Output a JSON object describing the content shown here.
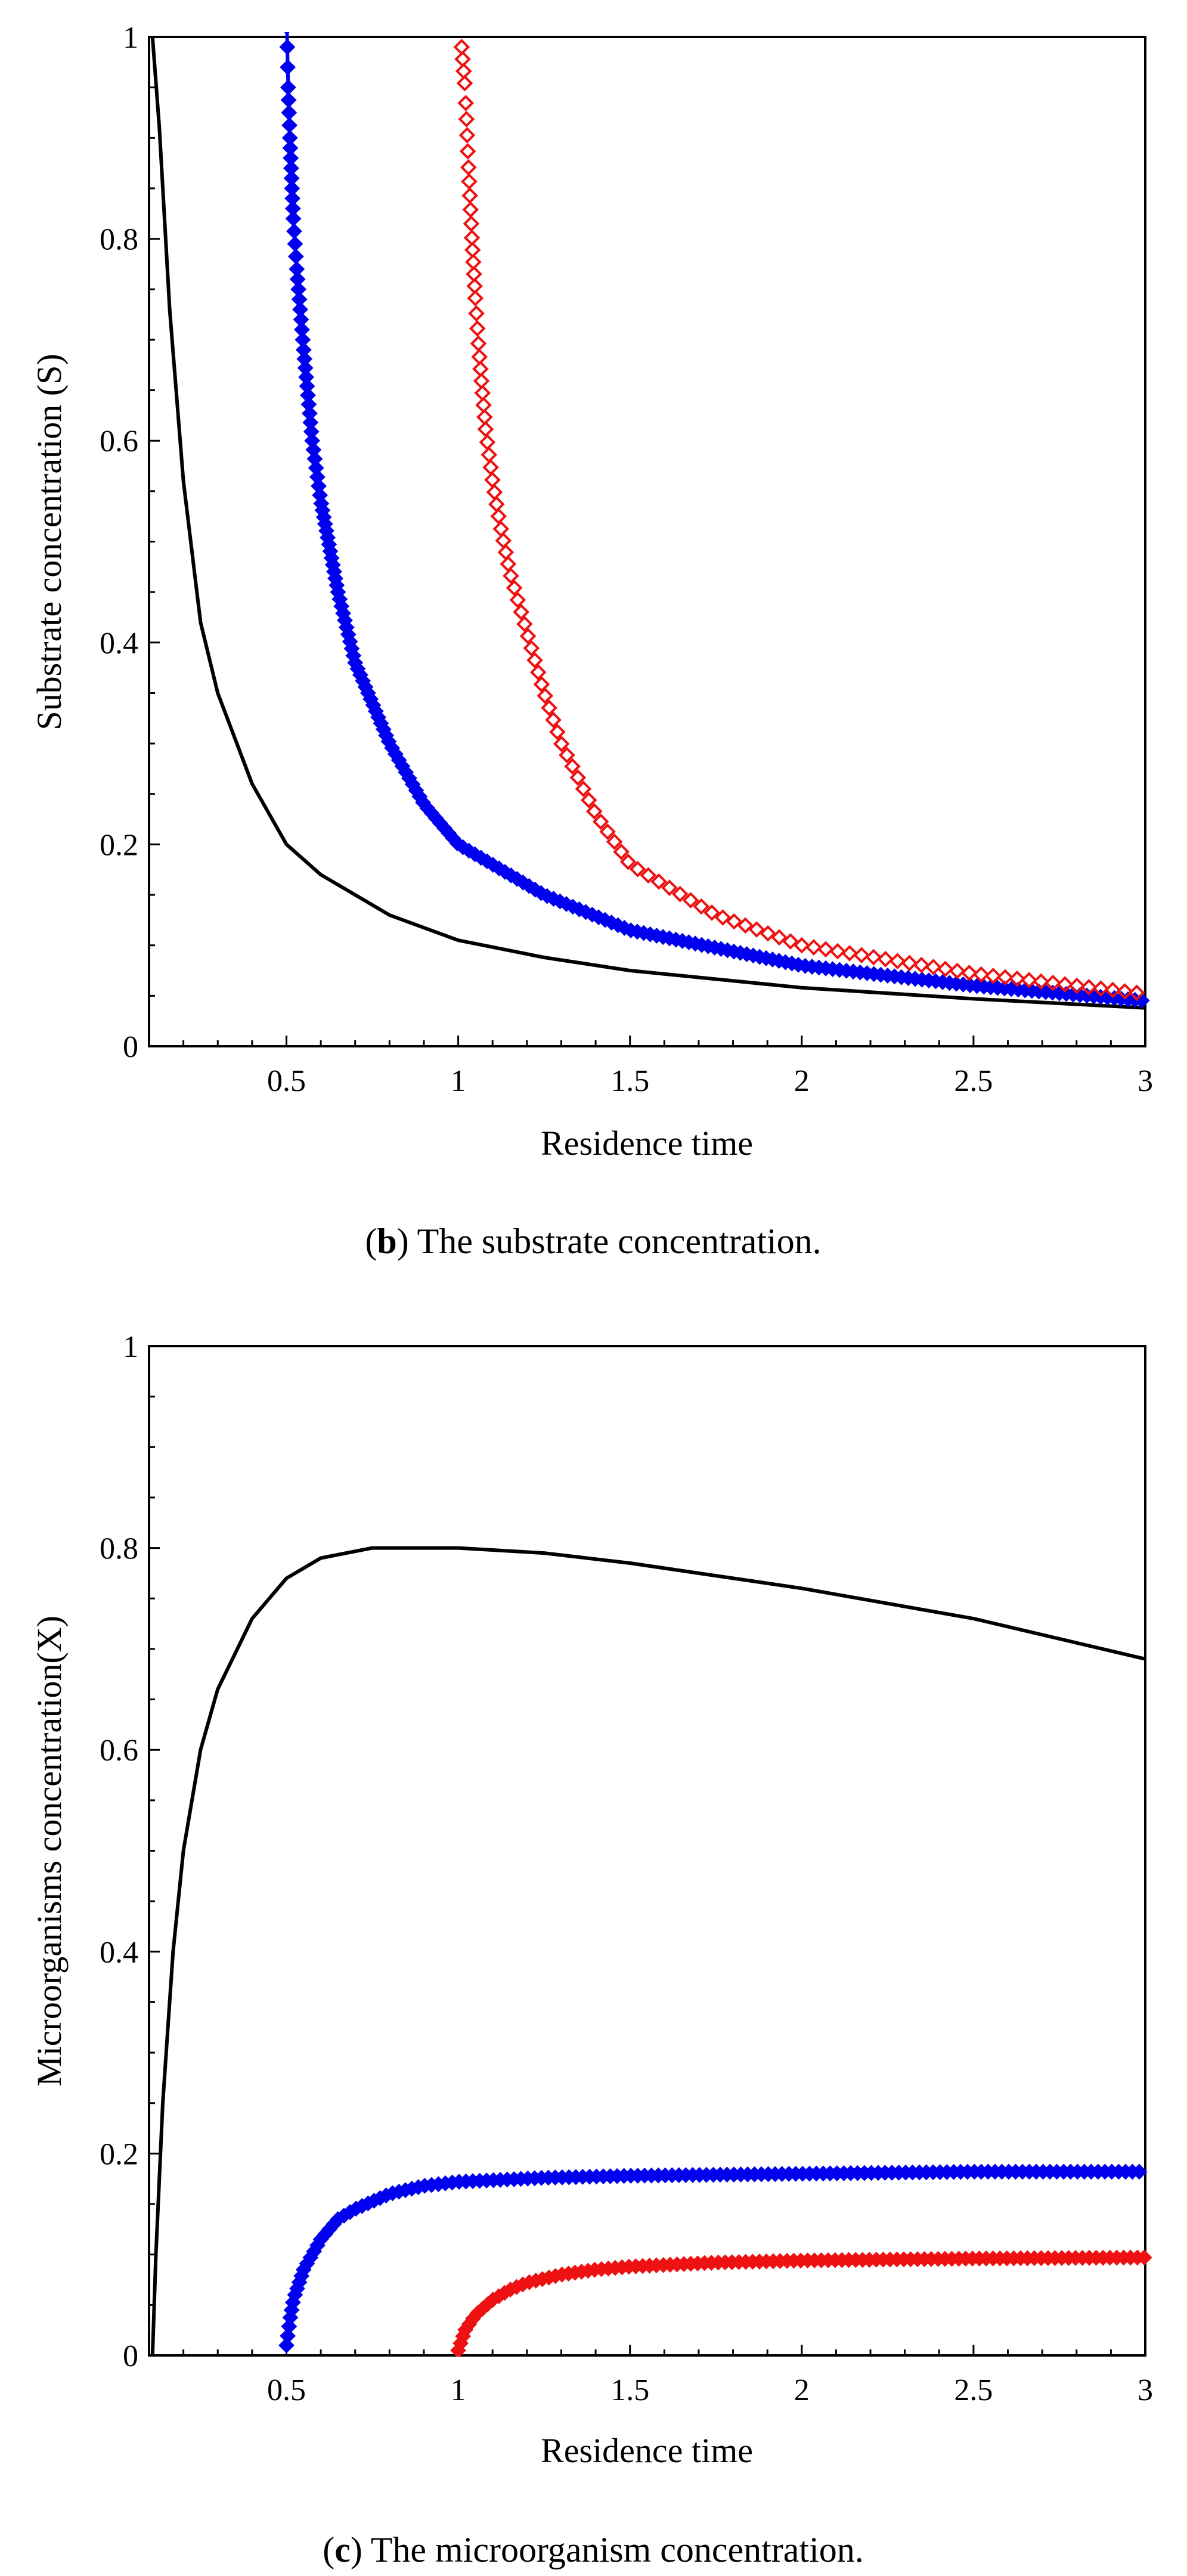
{
  "chart_data": [
    {
      "type": "line",
      "id": "b",
      "caption_letter": "b",
      "caption_open": "(",
      "caption_text": ") The substrate concentration.",
      "xlabel": "Residence time",
      "ylabel": "Substrate concentration (S)",
      "xlim": [
        0.1,
        3
      ],
      "ylim": [
        0,
        1
      ],
      "x_ticks": [
        0.5,
        1,
        1.5,
        2,
        2.5,
        3
      ],
      "x_tick_labels": [
        "0.5",
        "1",
        "1.5",
        "2",
        "2.5",
        "3"
      ],
      "y_ticks": [
        0,
        0.2,
        0.4,
        0.6,
        0.8,
        1
      ],
      "y_tick_labels": [
        "0",
        "0.2",
        "0.4",
        "0.6",
        "0.8",
        "1"
      ],
      "series": [
        {
          "name": "black",
          "style": "line",
          "color": "#000000",
          "x": [
            0.11,
            0.13,
            0.16,
            0.2,
            0.25,
            0.3,
            0.4,
            0.5,
            0.6,
            0.8,
            1,
            1.25,
            1.5,
            2,
            2.5,
            3
          ],
          "y": [
            1,
            0.91,
            0.73,
            0.56,
            0.42,
            0.35,
            0.26,
            0.2,
            0.17,
            0.13,
            0.105,
            0.088,
            0.075,
            0.058,
            0.047,
            0.038
          ]
        },
        {
          "name": "blue",
          "style": "line-diamond-filled",
          "color": "#0000ee",
          "x": [
            0.5,
            0.505,
            0.51,
            0.52,
            0.53,
            0.55,
            0.575,
            0.6,
            0.65,
            0.7,
            0.8,
            0.9,
            1,
            1.25,
            1.5,
            2,
            2.5,
            3
          ],
          "y": [
            1.03,
            0.95,
            0.9,
            0.82,
            0.77,
            0.69,
            0.6,
            0.54,
            0.45,
            0.38,
            0.3,
            0.24,
            0.2,
            0.15,
            0.115,
            0.08,
            0.06,
            0.045
          ]
        },
        {
          "name": "red",
          "style": "diamond-open",
          "color": "#ee1111",
          "x": [
            1.01,
            1.02,
            1.03,
            1.04,
            1.05,
            1.06,
            1.07,
            1.08,
            1.1,
            1.12,
            1.15,
            1.2,
            1.25,
            1.3,
            1.4,
            1.5,
            1.75,
            2,
            2.5,
            3
          ],
          "y": [
            0.99,
            0.95,
            0.87,
            0.8,
            0.74,
            0.69,
            0.65,
            0.61,
            0.56,
            0.52,
            0.47,
            0.41,
            0.35,
            0.3,
            0.23,
            0.18,
            0.13,
            0.1,
            0.072,
            0.052
          ]
        }
      ]
    },
    {
      "type": "line",
      "id": "c",
      "caption_letter": "c",
      "caption_open": "(",
      "caption_text": ") The microorganism concentration.",
      "xlabel": "Residence time",
      "ylabel": "Microorganisms concentration(X)",
      "xlim": [
        0.1,
        3
      ],
      "ylim": [
        0,
        1
      ],
      "x_ticks": [
        0.5,
        1,
        1.5,
        2,
        2.5,
        3
      ],
      "x_tick_labels": [
        "0.5",
        "1",
        "1.5",
        "2",
        "2.5",
        "3"
      ],
      "y_ticks": [
        0,
        0.2,
        0.4,
        0.6,
        0.8,
        1
      ],
      "y_tick_labels": [
        "0",
        "0.2",
        "0.4",
        "0.6",
        "0.8",
        "1"
      ],
      "series": [
        {
          "name": "black",
          "style": "line",
          "color": "#000000",
          "x": [
            0.11,
            0.12,
            0.14,
            0.17,
            0.2,
            0.25,
            0.3,
            0.4,
            0.5,
            0.6,
            0.75,
            0.9,
            1,
            1.25,
            1.5,
            2,
            2.5,
            3
          ],
          "y": [
            0,
            0.1,
            0.25,
            0.4,
            0.5,
            0.6,
            0.66,
            0.73,
            0.77,
            0.79,
            0.8,
            0.8,
            0.8,
            0.795,
            0.785,
            0.76,
            0.73,
            0.69
          ]
        },
        {
          "name": "blue",
          "style": "diamond-filled",
          "color": "#0000ee",
          "x": [
            0.5,
            0.51,
            0.52,
            0.55,
            0.6,
            0.65,
            0.7,
            0.8,
            0.9,
            1,
            1.25,
            1.5,
            2,
            2.5,
            3
          ],
          "y": [
            0.01,
            0.035,
            0.055,
            0.085,
            0.115,
            0.135,
            0.145,
            0.16,
            0.168,
            0.172,
            0.176,
            0.178,
            0.18,
            0.182,
            0.182
          ]
        },
        {
          "name": "red",
          "style": "diamond-filled",
          "color": "#ee1111",
          "x": [
            1,
            1.01,
            1.02,
            1.05,
            1.1,
            1.15,
            1.2,
            1.3,
            1.4,
            1.5,
            1.75,
            2,
            2.5,
            3
          ],
          "y": [
            0.005,
            0.015,
            0.025,
            0.04,
            0.055,
            0.065,
            0.072,
            0.08,
            0.085,
            0.088,
            0.092,
            0.094,
            0.096,
            0.097
          ]
        }
      ]
    }
  ]
}
